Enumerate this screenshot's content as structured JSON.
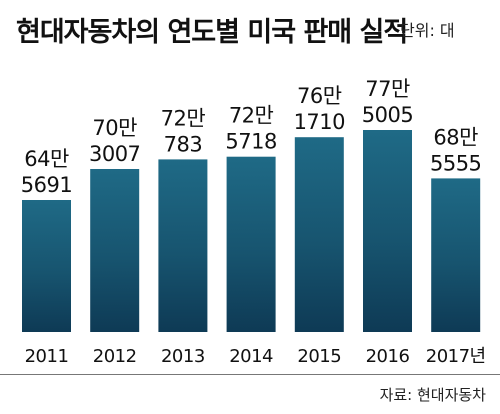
{
  "title": "현대자동차의 연도별 미국 판매 실적",
  "unit": "단위: 대",
  "source": "자료: 현대자동차",
  "colors": {
    "bar_top": "#1f6a86",
    "bar_bottom": "#0e3a55",
    "bar_gradient_mid": "#17546f"
  },
  "chart_data": {
    "type": "bar",
    "categories": [
      "2011",
      "2012",
      "2013",
      "2014",
      "2015",
      "2016",
      "2017년"
    ],
    "values": [
      645691,
      703007,
      720783,
      725718,
      761710,
      775005,
      685555
    ],
    "data_labels": [
      [
        "64만",
        "5691"
      ],
      [
        "70만",
        "3007"
      ],
      [
        "72만",
        "783"
      ],
      [
        "72만",
        "5718"
      ],
      [
        "76만",
        "1710"
      ],
      [
        "77만",
        "5005"
      ],
      [
        "68만",
        "5555"
      ]
    ],
    "title": "현대자동차의 연도별 미국 판매 실적",
    "xlabel": "",
    "ylabel": "",
    "grid": false,
    "legend": "none"
  }
}
